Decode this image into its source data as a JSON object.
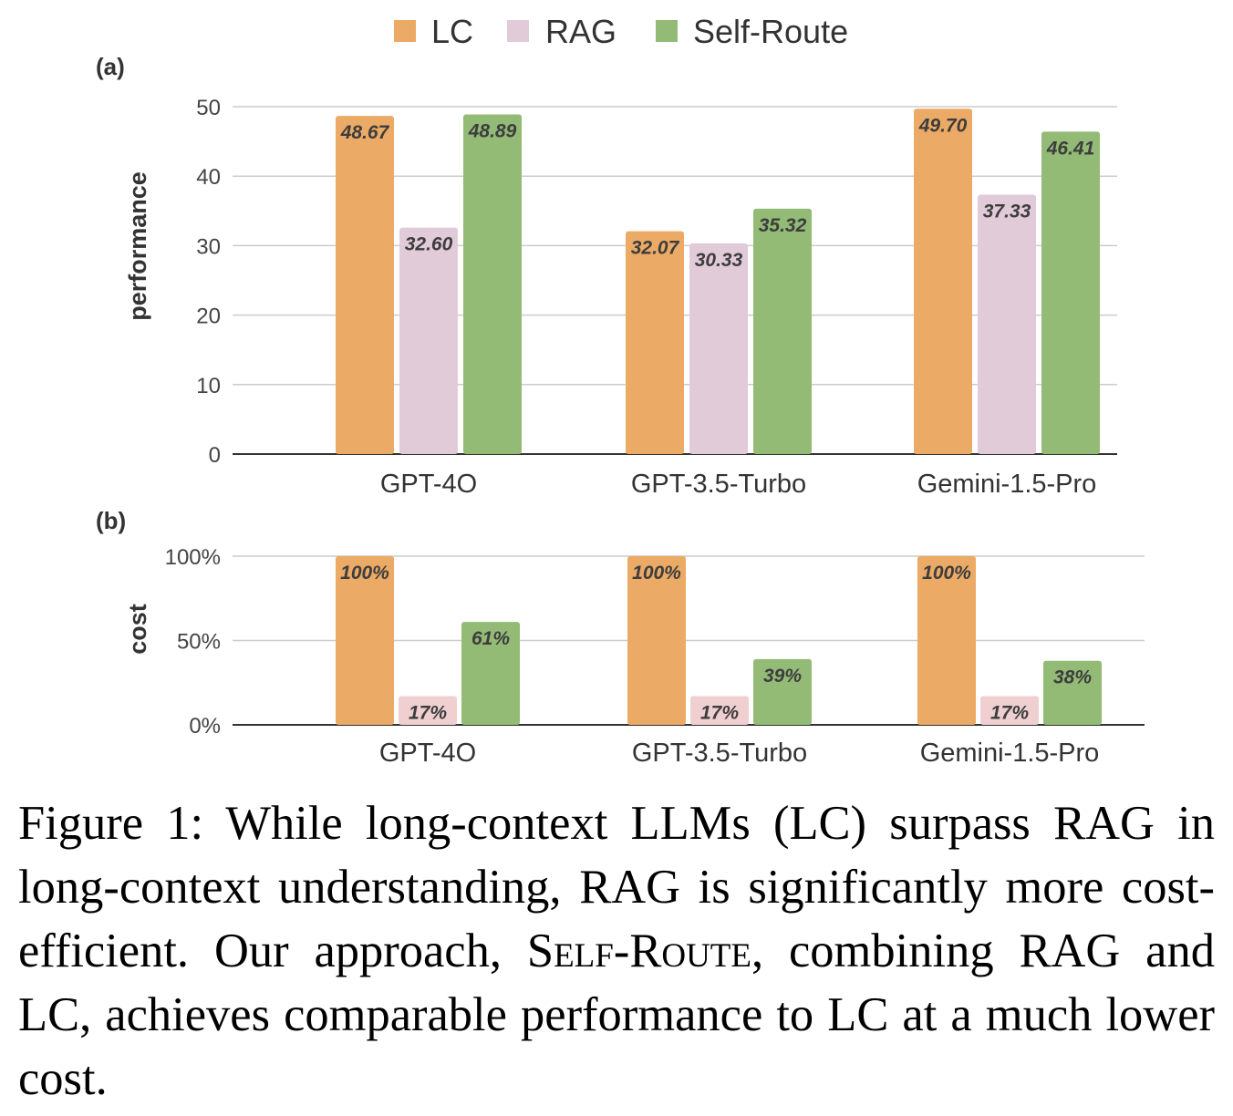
{
  "chart_data": [
    {
      "panel_label": "(a)",
      "type": "bar",
      "ylabel": "performance",
      "categories": [
        "GPT-4O",
        "GPT-3.5-Turbo",
        "Gemini-1.5-Pro"
      ],
      "ylim": [
        0,
        50
      ],
      "yticks": [
        0,
        10,
        20,
        30,
        40,
        50
      ],
      "ytick_labels": [
        "0",
        "10",
        "20",
        "30",
        "40",
        "50"
      ],
      "grid": true,
      "legend_position": "top-center",
      "series": [
        {
          "name": "LC",
          "color": "#ebaa65",
          "values": [
            48.67,
            32.07,
            49.7
          ],
          "labels": [
            "48.67",
            "32.07",
            "49.70"
          ]
        },
        {
          "name": "RAG",
          "color": "#e2cbd9",
          "values": [
            32.6,
            30.33,
            37.33
          ],
          "labels": [
            "32.60",
            "30.33",
            "37.33"
          ]
        },
        {
          "name": "Self-Route",
          "color": "#93bb76",
          "values": [
            48.89,
            35.32,
            46.41
          ],
          "labels": [
            "48.89",
            "35.32",
            "46.41"
          ]
        }
      ]
    },
    {
      "panel_label": "(b)",
      "type": "bar",
      "ylabel": "cost",
      "categories": [
        "GPT-4O",
        "GPT-3.5-Turbo",
        "Gemini-1.5-Pro"
      ],
      "ylim": [
        0,
        100
      ],
      "yticks": [
        0,
        50,
        100
      ],
      "ytick_labels": [
        "0%",
        "50%",
        "100%"
      ],
      "grid": true,
      "series": [
        {
          "name": "LC",
          "color": "#ebaa65",
          "values": [
            100,
            100,
            100
          ],
          "labels": [
            "100%",
            "100%",
            "100%"
          ]
        },
        {
          "name": "RAG",
          "color": "#efcfcf",
          "values": [
            17,
            17,
            17
          ],
          "labels": [
            "17%",
            "17%",
            "17%"
          ]
        },
        {
          "name": "Self-Route",
          "color": "#93bb76",
          "values": [
            61,
            39,
            38
          ],
          "labels": [
            "61%",
            "39%",
            "38%"
          ]
        }
      ]
    }
  ],
  "caption": {
    "prefix": "Figure 1: While long-context LLMs (LC) surpass RAG in long-context understanding, RAG is significantly more cost-efficient. Our approach, ",
    "method": "Self-Route",
    "suffix": ", combining RAG and LC, achieves comparable performance to LC at a much lower cost."
  }
}
